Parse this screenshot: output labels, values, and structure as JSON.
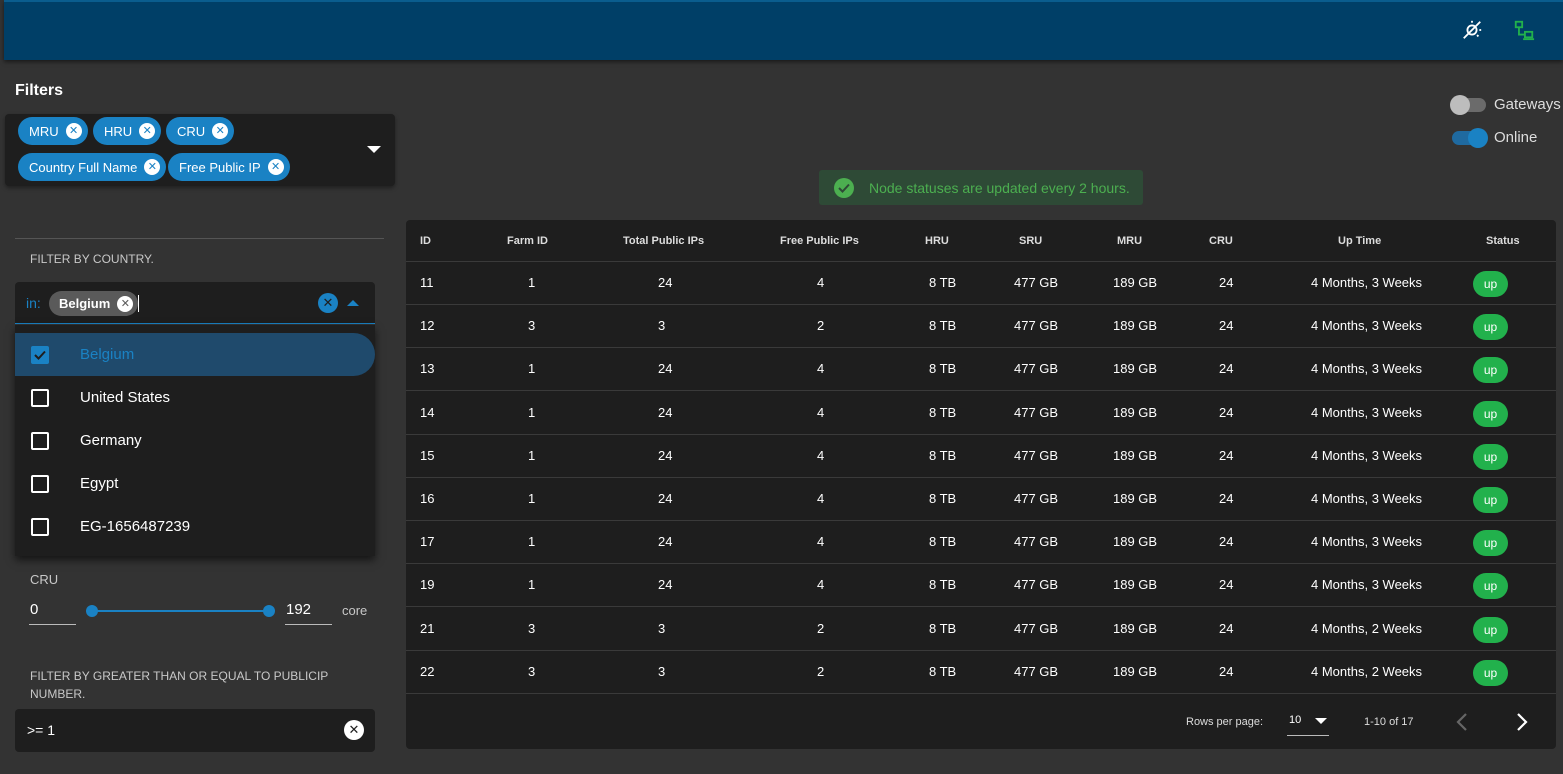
{
  "header": {
    "icons": [
      "theme-toggle-icon",
      "network-icon"
    ]
  },
  "filters": {
    "title": "Filters",
    "chips": [
      {
        "label": "MRU"
      },
      {
        "label": "HRU"
      },
      {
        "label": "CRU"
      },
      {
        "label": "Country Full Name"
      },
      {
        "label": "Free Public IP"
      }
    ]
  },
  "country_filter": {
    "label": "FILTER BY COUNTRY.",
    "prefix": "in:",
    "selected_chip": "Belgium",
    "options": [
      {
        "label": "Belgium",
        "checked": true
      },
      {
        "label": "United States",
        "checked": false
      },
      {
        "label": "Germany",
        "checked": false
      },
      {
        "label": "Egypt",
        "checked": false
      },
      {
        "label": "EG-1656487239",
        "checked": false
      }
    ]
  },
  "cru_filter": {
    "label": "CRU",
    "min": "0",
    "max": "192",
    "unit": "core"
  },
  "publicip_filter": {
    "label": "FILTER BY GREATER THAN OR EQUAL TO PUBLICIP NUMBER.",
    "value": ">= 1"
  },
  "toggles": {
    "gateways": {
      "label": "Gateways",
      "on": false
    },
    "online": {
      "label": "Online",
      "on": true
    }
  },
  "alert": {
    "text": "Node statuses are updated every 2 hours."
  },
  "table": {
    "headers": [
      "ID",
      "Farm ID",
      "Total Public IPs",
      "Free Public IPs",
      "HRU",
      "SRU",
      "MRU",
      "CRU",
      "Up Time",
      "Status"
    ],
    "rows": [
      [
        "11",
        "1",
        "24",
        "4",
        "8 TB",
        "477 GB",
        "189 GB",
        "24",
        "4 Months, 3 Weeks",
        "up"
      ],
      [
        "12",
        "3",
        "3",
        "2",
        "8 TB",
        "477 GB",
        "189 GB",
        "24",
        "4 Months, 3 Weeks",
        "up"
      ],
      [
        "13",
        "1",
        "24",
        "4",
        "8 TB",
        "477 GB",
        "189 GB",
        "24",
        "4 Months, 3 Weeks",
        "up"
      ],
      [
        "14",
        "1",
        "24",
        "4",
        "8 TB",
        "477 GB",
        "189 GB",
        "24",
        "4 Months, 3 Weeks",
        "up"
      ],
      [
        "15",
        "1",
        "24",
        "4",
        "8 TB",
        "477 GB",
        "189 GB",
        "24",
        "4 Months, 3 Weeks",
        "up"
      ],
      [
        "16",
        "1",
        "24",
        "4",
        "8 TB",
        "477 GB",
        "189 GB",
        "24",
        "4 Months, 3 Weeks",
        "up"
      ],
      [
        "17",
        "1",
        "24",
        "4",
        "8 TB",
        "477 GB",
        "189 GB",
        "24",
        "4 Months, 3 Weeks",
        "up"
      ],
      [
        "19",
        "1",
        "24",
        "4",
        "8 TB",
        "477 GB",
        "189 GB",
        "24",
        "4 Months, 3 Weeks",
        "up"
      ],
      [
        "21",
        "3",
        "3",
        "2",
        "8 TB",
        "477 GB",
        "189 GB",
        "24",
        "4 Months, 2 Weeks",
        "up"
      ],
      [
        "22",
        "3",
        "3",
        "2",
        "8 TB",
        "477 GB",
        "189 GB",
        "24",
        "4 Months, 2 Weeks",
        "up"
      ]
    ],
    "footer": {
      "rows_per_page_label": "Rows per page:",
      "rows_per_page_value": "10",
      "range": "1-10 of 17"
    }
  },
  "colors": {
    "accent": "#1a82c4",
    "header_bg": "#003f67",
    "status_up": "#22b14c",
    "alert_text": "#4caf50"
  }
}
